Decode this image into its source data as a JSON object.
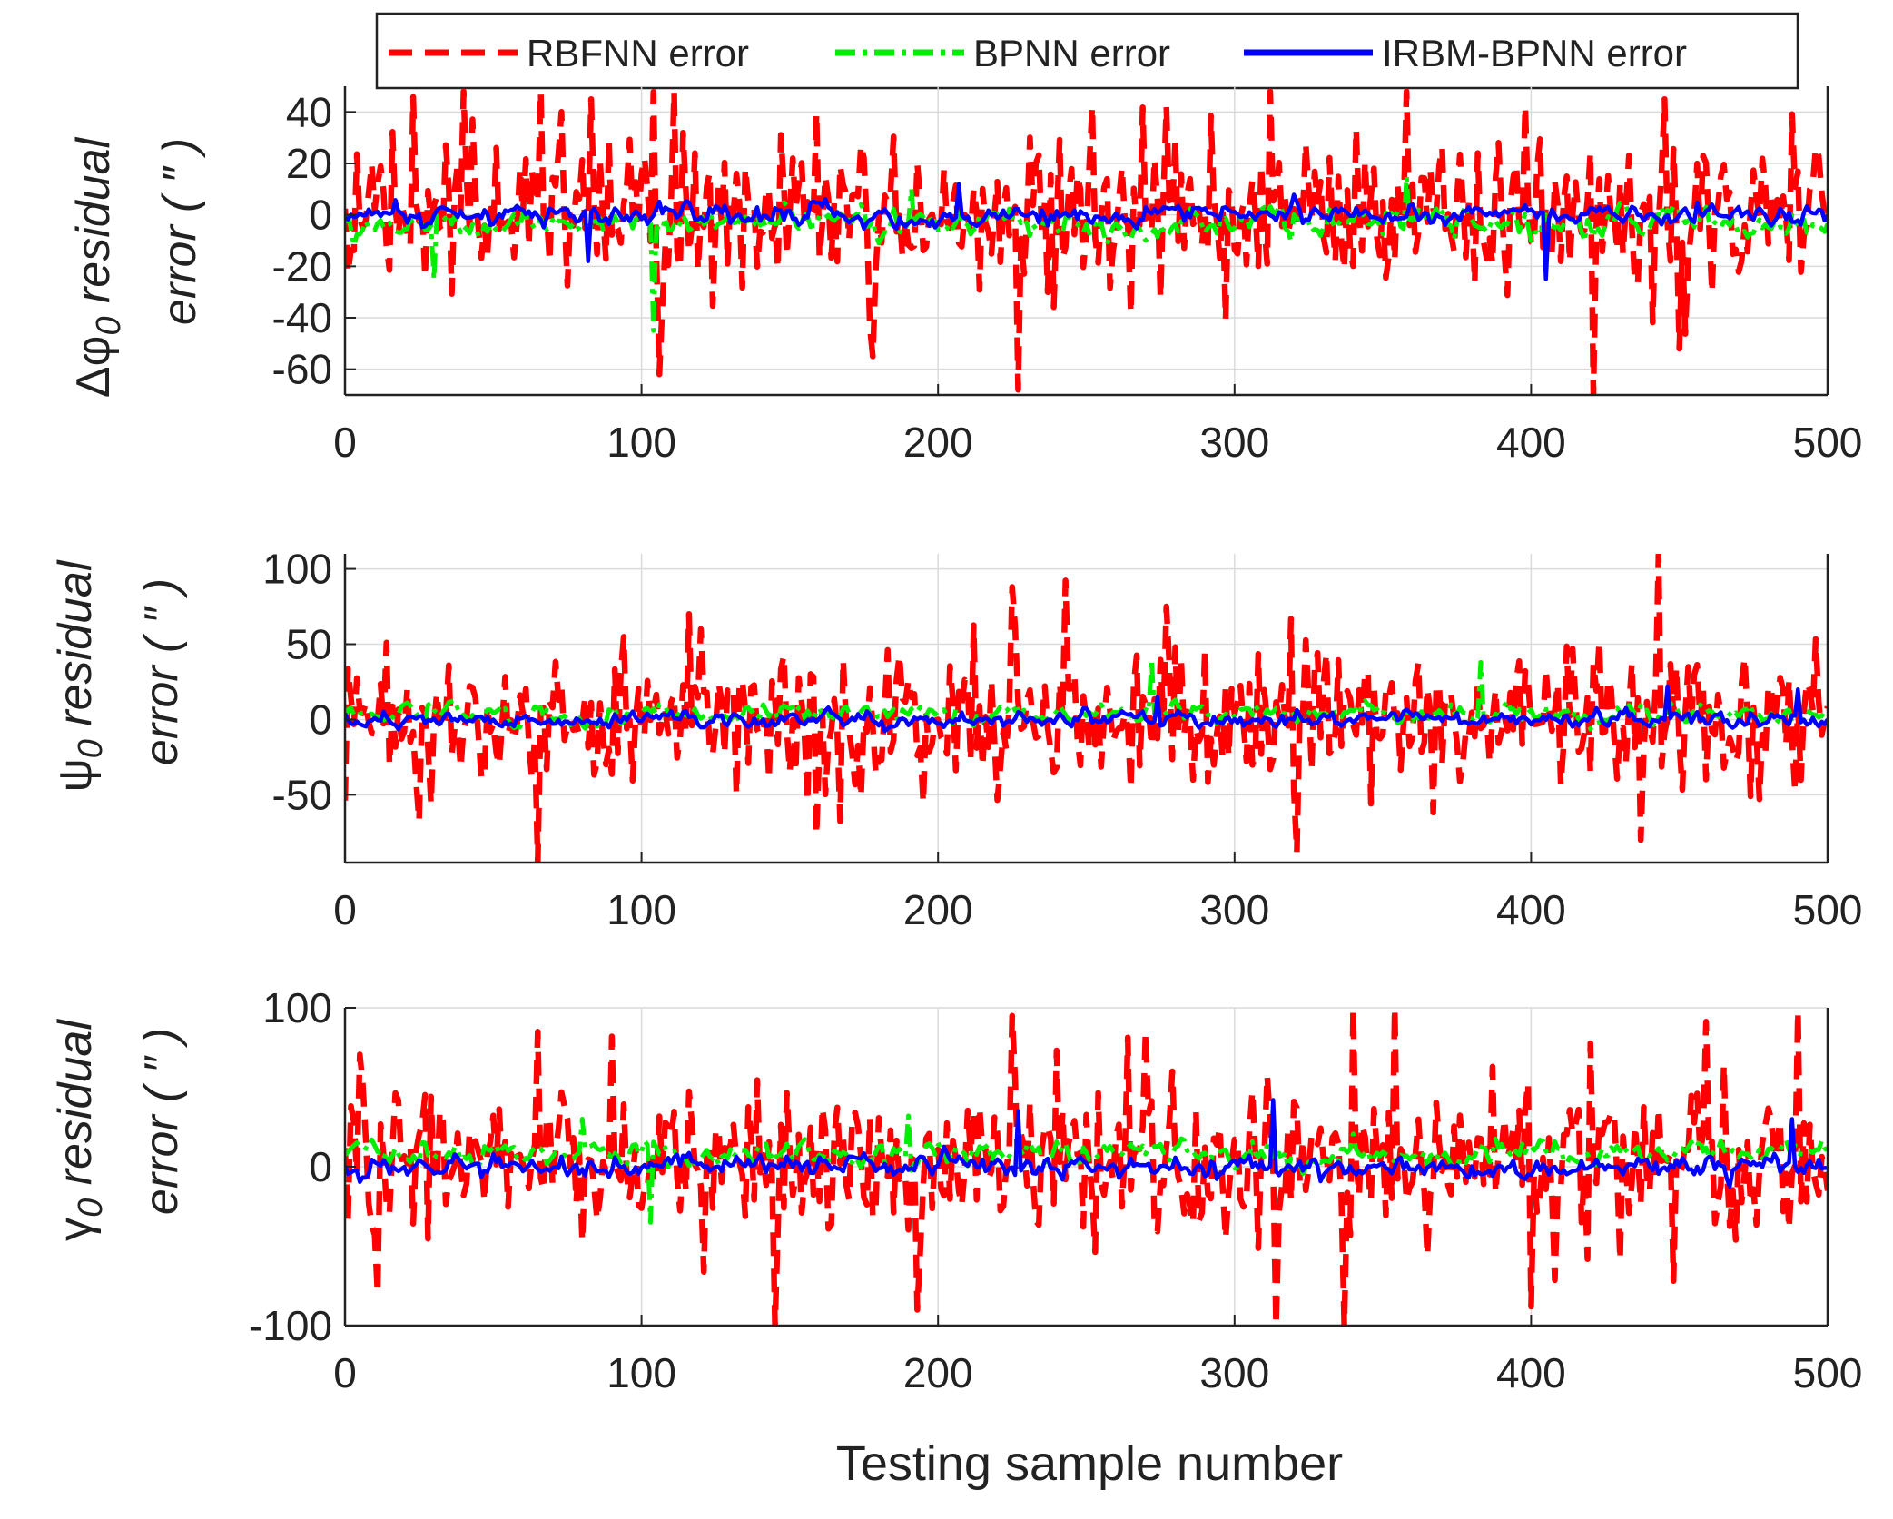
{
  "chart_data": {
    "type": "line",
    "xlabel": "Testing sample number",
    "legend": {
      "placement": "top",
      "entries": [
        "RBFNN error",
        "BPNN error",
        "IRBM-BPNN error"
      ]
    },
    "colors": {
      "RBFNN error": "#ff0000",
      "BPNN error": "#00ee00",
      "IRBM-BPNN error": "#0000ff",
      "axis": "#222222",
      "grid": "#dadada"
    },
    "line_styles": {
      "RBFNN error": "dashed",
      "BPNN error": "dash-dot",
      "IRBM-BPNN error": "solid"
    },
    "x_range": [
      0,
      500
    ],
    "x_ticks": [
      "0",
      "100",
      "200",
      "300",
      "400",
      "500"
    ],
    "samples": 500,
    "panels": [
      {
        "id": "phi",
        "ylabel_symbol": "Δφ",
        "ylabel_sub": "0",
        "ylabel_word": " residual",
        "ylabel_line2": "error ( ″ )",
        "ylim": [
          -70,
          50
        ],
        "y_ticks": [
          40,
          20,
          0,
          -20,
          -40,
          -60
        ],
        "y_tick_labels": [
          "40",
          "20",
          "0",
          "-20",
          "-40",
          "-60"
        ],
        "series": [
          {
            "name": "RBFNN error",
            "amplitude": 14,
            "min_value": -70,
            "max_value": 48,
            "peaks": [
              [
                73,
                40
              ],
              [
                83,
                45
              ],
              [
                106,
                -62
              ],
              [
                178,
                -55
              ],
              [
                227,
                -68
              ],
              [
                277,
                42
              ],
              [
                358,
                48
              ],
              [
                421,
                -70
              ],
              [
                445,
                45
              ],
              [
                450,
                -52
              ]
            ]
          },
          {
            "name": "BPNN error",
            "amplitude": 5,
            "offset": -3,
            "min_value": -45,
            "max_value": 15,
            "peaks": [
              [
                30,
                -25
              ],
              [
                104,
                -45
              ],
              [
                191,
                10
              ],
              [
                358,
                15
              ]
            ]
          },
          {
            "name": "IRBM-BPNN error",
            "amplitude": 4,
            "min_value": -25,
            "max_value": 15,
            "peaks": [
              [
                82,
                -18
              ],
              [
                207,
                12
              ],
              [
                405,
                -25
              ]
            ]
          }
        ]
      },
      {
        "id": "psi",
        "ylabel_symbol": "ψ",
        "ylabel_sub": "0",
        "ylabel_word": " residual",
        "ylabel_line2": "error ( ″ )",
        "ylim": [
          -95,
          110
        ],
        "y_ticks": [
          100,
          50,
          0,
          -50
        ],
        "y_tick_labels": [
          "100",
          "50",
          "0",
          "-50"
        ],
        "series": [
          {
            "name": "RBFNN error",
            "amplitude": 22,
            "min_value": -95,
            "max_value": 110,
            "peaks": [
              [
                65,
                -95
              ],
              [
                116,
                70
              ],
              [
                120,
                60
              ],
              [
                225,
                88
              ],
              [
                277,
                75
              ],
              [
                321,
                -88
              ],
              [
                443,
                110
              ],
              [
                437,
                -80
              ]
            ]
          },
          {
            "name": "BPNN error",
            "amplitude": 6,
            "offset": 4,
            "min_value": -20,
            "max_value": 45,
            "peaks": [
              [
                272,
                40
              ],
              [
                383,
                38
              ]
            ]
          },
          {
            "name": "IRBM-BPNN error",
            "amplitude": 5,
            "min_value": -20,
            "max_value": 25,
            "peaks": [
              [
                274,
                15
              ],
              [
                446,
                22
              ],
              [
                490,
                20
              ]
            ]
          }
        ]
      },
      {
        "id": "gamma",
        "ylabel_symbol": "γ",
        "ylabel_sub": "0",
        "ylabel_word": " residual",
        "ylabel_line2": "error ( ″ )",
        "ylim": [
          -100,
          100
        ],
        "y_ticks": [
          100,
          0,
          -100
        ],
        "y_tick_labels": [
          "100",
          "0",
          "-100"
        ],
        "series": [
          {
            "name": "RBFNN error",
            "amplitude": 24,
            "min_value": -100,
            "max_value": 100,
            "peaks": [
              [
                65,
                85
              ],
              [
                90,
                82
              ],
              [
                225,
                95
              ],
              [
                193,
                -90
              ],
              [
                314,
                -100
              ],
              [
                400,
                -88
              ],
              [
                490,
                98
              ],
              [
                11,
                -80
              ]
            ]
          },
          {
            "name": "BPNN error",
            "amplitude": 7,
            "offset": 8,
            "min_value": -35,
            "max_value": 35,
            "peaks": [
              [
                103,
                -35
              ],
              [
                80,
                30
              ],
              [
                190,
                32
              ]
            ]
          },
          {
            "name": "IRBM-BPNN error",
            "amplitude": 6,
            "min_value": -15,
            "max_value": 42,
            "peaks": [
              [
                313,
                42
              ],
              [
                227,
                35
              ],
              [
                488,
                30
              ]
            ]
          }
        ]
      }
    ]
  }
}
